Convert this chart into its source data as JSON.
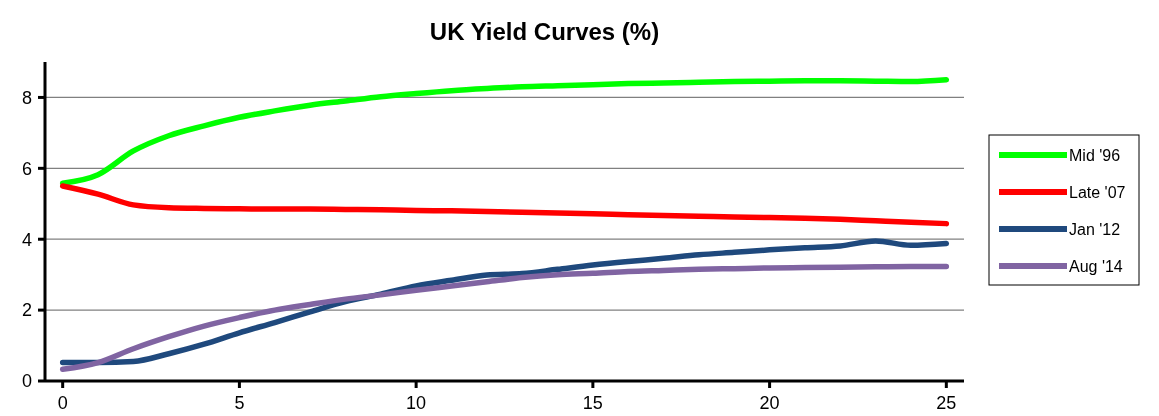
{
  "chart_data": {
    "type": "line",
    "title": "UK Yield Curves (%)",
    "x": [
      0,
      1,
      2,
      3,
      4,
      5,
      6,
      7,
      8,
      9,
      10,
      11,
      12,
      13,
      14,
      15,
      16,
      17,
      18,
      19,
      20,
      21,
      22,
      23,
      24,
      25
    ],
    "series": [
      {
        "name": "Mid '96",
        "color": "#00ff00",
        "values": [
          5.58,
          5.82,
          6.49,
          6.92,
          7.2,
          7.44,
          7.62,
          7.78,
          7.9,
          8.02,
          8.11,
          8.19,
          8.25,
          8.3,
          8.33,
          8.36,
          8.39,
          8.41,
          8.43,
          8.45,
          8.46,
          8.47,
          8.47,
          8.46,
          8.45,
          8.5
        ]
      },
      {
        "name": "Late '07",
        "color": "#ff0000",
        "values": [
          5.5,
          5.27,
          4.97,
          4.89,
          4.87,
          4.86,
          4.85,
          4.85,
          4.84,
          4.83,
          4.81,
          4.8,
          4.78,
          4.76,
          4.74,
          4.72,
          4.69,
          4.67,
          4.65,
          4.63,
          4.61,
          4.59,
          4.56,
          4.52,
          4.48,
          4.44
        ]
      },
      {
        "name": "Jan '12",
        "color": "#1f497d",
        "values": [
          0.52,
          0.52,
          0.55,
          0.77,
          1.04,
          1.36,
          1.65,
          1.95,
          2.24,
          2.45,
          2.68,
          2.84,
          2.99,
          3.03,
          3.15,
          3.27,
          3.37,
          3.46,
          3.56,
          3.63,
          3.7,
          3.76,
          3.81,
          3.95,
          3.83,
          3.88
        ]
      },
      {
        "name": "Aug '14",
        "color": "#8064a2",
        "values": [
          0.33,
          0.52,
          0.91,
          1.25,
          1.55,
          1.79,
          2.0,
          2.16,
          2.31,
          2.43,
          2.56,
          2.68,
          2.8,
          2.92,
          3.0,
          3.04,
          3.09,
          3.12,
          3.15,
          3.17,
          3.19,
          3.2,
          3.21,
          3.22,
          3.23,
          3.23
        ]
      }
    ],
    "xlim": [
      -0.5,
      25.5
    ],
    "xticks": [
      0,
      5,
      10,
      15,
      20,
      25
    ],
    "ylim": [
      0,
      9
    ],
    "yticks": [
      0,
      2,
      4,
      6,
      8
    ],
    "grid": "y",
    "legend": "right",
    "marker": "none",
    "line_style": "solid"
  }
}
